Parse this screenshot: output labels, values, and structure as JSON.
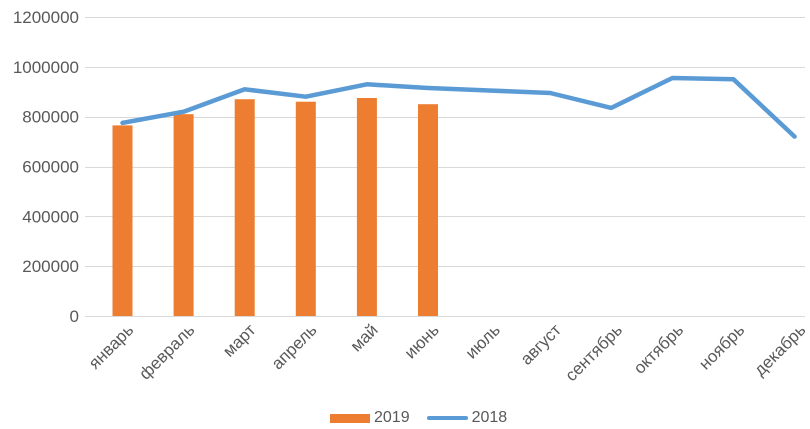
{
  "chart_data": {
    "type": "bar",
    "combo": "bar+line",
    "categories": [
      "январь",
      "февраль",
      "март",
      "апрель",
      "май",
      "июнь",
      "июль",
      "август",
      "сентябрь",
      "октябрь",
      "ноябрь",
      "декабрь"
    ],
    "series": [
      {
        "name": "2019",
        "type": "bar",
        "color": "#ED7D31",
        "values": [
          765000,
          810000,
          870000,
          860000,
          875000,
          850000,
          null,
          null,
          null,
          null,
          null,
          null
        ]
      },
      {
        "name": "2018",
        "type": "line",
        "color": "#5B9BD5",
        "values": [
          775000,
          820000,
          910000,
          880000,
          930000,
          915000,
          905000,
          895000,
          835000,
          955000,
          950000,
          720000
        ]
      }
    ],
    "title": "",
    "xlabel": "",
    "ylabel": "",
    "ylim": [
      0,
      1200000
    ],
    "y_axis": {
      "min": 0,
      "max": 1200000,
      "step": 200000,
      "tick_labels": [
        "0",
        "200000",
        "400000",
        "600000",
        "800000",
        "1000000",
        "1200000"
      ]
    },
    "grid": "horizontal",
    "legend_position": "bottom"
  },
  "colors": {
    "background": "#FFFFFF",
    "grid": "#D9D9D9",
    "axis_text": "#595959",
    "bar_2019": "#ED7D31",
    "line_2018": "#5B9BD5"
  },
  "legend": {
    "items": [
      {
        "label": "2019",
        "swatch": "bar"
      },
      {
        "label": "2018",
        "swatch": "line"
      }
    ]
  }
}
